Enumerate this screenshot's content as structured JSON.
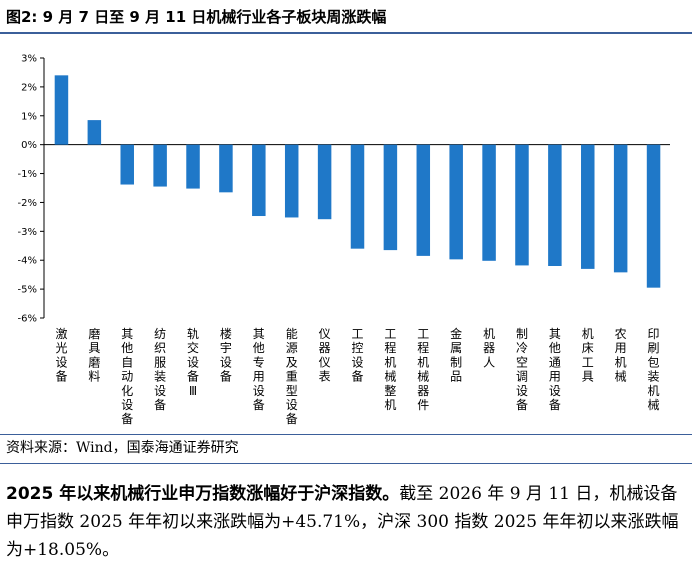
{
  "figure_title": "图2:  9 月 7 日至 9 月 11 日机械行业各子板块周涨跌幅",
  "source_note": "资料来源：Wind，国泰海通证券研究",
  "summary": {
    "headline": "2025 年以来机械行业申万指数涨幅好于沪深指数。",
    "body": "截至 2026 年 9 月 11 日，机械设备申万指数 2025 年年初以来涨跌幅为+45.71%，沪深 300 指数 2025 年年初以来涨跌幅为+18.05%。"
  },
  "colors": {
    "bar": "#1f78c8",
    "rule": "#3b5f9a"
  },
  "chart_data": {
    "type": "bar",
    "categories": [
      "激光设备",
      "磨具磨料",
      "其他自动化设备",
      "纺织服装设备",
      "轨交设备Ⅲ",
      "楼宇设备",
      "其他专用设备",
      "能源及重型设备",
      "仪器仪表",
      "工控设备",
      "工程机械整机",
      "工程机械器件",
      "金属制品",
      "机器人",
      "制冷空调设备",
      "其他通用设备",
      "机床工具",
      "农用机械",
      "印刷包装机械"
    ],
    "values": [
      2.4,
      0.85,
      -1.38,
      -1.45,
      -1.52,
      -1.65,
      -2.47,
      -2.52,
      -2.58,
      -3.6,
      -3.65,
      -3.85,
      -3.97,
      -4.02,
      -4.18,
      -4.2,
      -4.3,
      -4.42,
      -4.95
    ],
    "ylim": [
      -6,
      3
    ],
    "yticks": [
      "3%",
      "2%",
      "1%",
      "0%",
      "-1%",
      "-2%",
      "-3%",
      "-4%",
      "-5%",
      "-6%"
    ],
    "ytick_values": [
      3,
      2,
      1,
      0,
      -1,
      -2,
      -3,
      -4,
      -5,
      -6
    ],
    "grid": false,
    "legend": "none"
  }
}
